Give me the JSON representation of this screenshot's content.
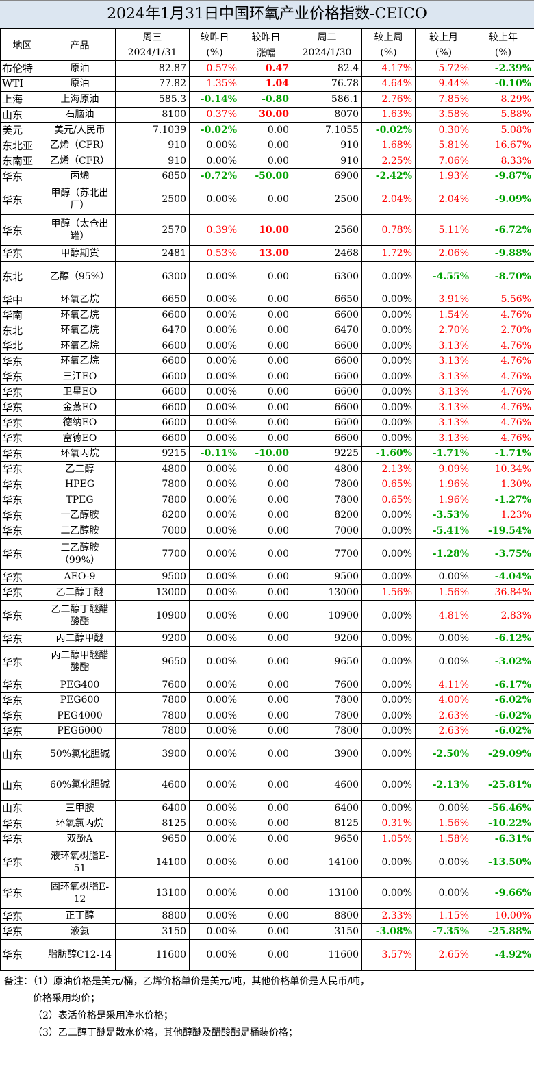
{
  "title": "2024年1月31日中国环氧产业价格指数-CEICO",
  "headers": {
    "region": "地区",
    "product": "产品",
    "wed": "周三",
    "wed_date": "2024/1/31",
    "dod_pct": "较昨日",
    "dod_pct_unit": "(%)",
    "dod_chg": "较昨日",
    "dod_chg_unit": "涨幅",
    "tue": "周二",
    "tue_date": "2024/1/30",
    "wow": "较上周",
    "wow_unit": "(%)",
    "mom": "较上月",
    "mom_unit": "(%)",
    "yoy": "较上年",
    "yoy_unit": "(%)"
  },
  "rows": [
    {
      "region": "布伦特",
      "product": "原油",
      "wed": "82.87",
      "dod": "0.57%",
      "chg": "0.47",
      "tue": "82.4",
      "wow": "4.17%",
      "mom": "5.72%",
      "yoy": "-2.39%"
    },
    {
      "region": "WTI",
      "product": "原油",
      "wed": "77.82",
      "dod": "1.35%",
      "chg": "1.04",
      "tue": "76.78",
      "wow": "4.64%",
      "mom": "9.44%",
      "yoy": "-0.10%"
    },
    {
      "region": "上海",
      "product": "上海原油",
      "wed": "585.3",
      "dod": "-0.14%",
      "chg": "-0.80",
      "tue": "586.1",
      "wow": "2.76%",
      "mom": "7.85%",
      "yoy": "8.29%"
    },
    {
      "region": "山东",
      "product": "石脑油",
      "wed": "8100",
      "dod": "0.37%",
      "chg": "30.00",
      "tue": "8070",
      "wow": "1.63%",
      "mom": "3.58%",
      "yoy": "5.88%"
    },
    {
      "region": "美元",
      "product": "美元/人民币",
      "wed": "7.1039",
      "dod": "-0.02%",
      "chg": "0.00",
      "tue": "7.1055",
      "wow": "-0.02%",
      "mom": "0.30%",
      "yoy": "5.08%"
    },
    {
      "region": "东北亚",
      "product": "乙烯（CFR）",
      "wed": "910",
      "dod": "0.00%",
      "chg": "0.00",
      "tue": "910",
      "wow": "1.68%",
      "mom": "5.81%",
      "yoy": "16.67%"
    },
    {
      "region": "东南亚",
      "product": "乙烯（CFR）",
      "wed": "910",
      "dod": "0.00%",
      "chg": "0.00",
      "tue": "910",
      "wow": "2.25%",
      "mom": "7.06%",
      "yoy": "8.33%"
    },
    {
      "region": "华东",
      "product": "丙烯",
      "wed": "6850",
      "dod": "-0.72%",
      "chg": "-50.00",
      "tue": "6900",
      "wow": "-2.42%",
      "mom": "1.93%",
      "yoy": "-9.87%"
    },
    {
      "region": "华东",
      "product": "甲醇（苏北出厂）",
      "wed": "2500",
      "dod": "0.00%",
      "chg": "0.00",
      "tue": "2500",
      "wow": "2.04%",
      "mom": "2.04%",
      "yoy": "-9.09%"
    },
    {
      "region": "华东",
      "product": "甲醇（太仓出罐）",
      "wed": "2570",
      "dod": "0.39%",
      "chg": "10.00",
      "tue": "2560",
      "wow": "0.78%",
      "mom": "5.11%",
      "yoy": "-6.72%"
    },
    {
      "region": "华东",
      "product": "甲醇期货",
      "wed": "2481",
      "dod": "0.53%",
      "chg": "13.00",
      "tue": "2468",
      "wow": "1.72%",
      "mom": "2.06%",
      "yoy": "-9.88%"
    },
    {
      "region": "东北",
      "product": "乙醇（95%）",
      "wed": "6300",
      "dod": "0.00%",
      "chg": "0.00",
      "tue": "6300",
      "wow": "0.00%",
      "mom": "-4.55%",
      "yoy": "-8.70%"
    },
    {
      "region": "华中",
      "product": "环氧乙烷",
      "wed": "6650",
      "dod": "0.00%",
      "chg": "0.00",
      "tue": "6650",
      "wow": "0.00%",
      "mom": "3.91%",
      "yoy": "5.56%"
    },
    {
      "region": "华南",
      "product": "环氧乙烷",
      "wed": "6600",
      "dod": "0.00%",
      "chg": "0.00",
      "tue": "6600",
      "wow": "0.00%",
      "mom": "1.54%",
      "yoy": "4.76%"
    },
    {
      "region": "东北",
      "product": "环氧乙烷",
      "wed": "6470",
      "dod": "0.00%",
      "chg": "0.00",
      "tue": "6470",
      "wow": "0.00%",
      "mom": "2.70%",
      "yoy": "2.70%"
    },
    {
      "region": "华北",
      "product": "环氧乙烷",
      "wed": "6600",
      "dod": "0.00%",
      "chg": "0.00",
      "tue": "6600",
      "wow": "0.00%",
      "mom": "3.13%",
      "yoy": "4.76%"
    },
    {
      "region": "华东",
      "product": "环氧乙烷",
      "wed": "6600",
      "dod": "0.00%",
      "chg": "0.00",
      "tue": "6600",
      "wow": "0.00%",
      "mom": "3.13%",
      "yoy": "4.76%"
    },
    {
      "region": "华东",
      "product": "三江EO",
      "wed": "6600",
      "dod": "0.00%",
      "chg": "0.00",
      "tue": "6600",
      "wow": "0.00%",
      "mom": "3.13%",
      "yoy": "4.76%"
    },
    {
      "region": "华东",
      "product": "卫星EO",
      "wed": "6600",
      "dod": "0.00%",
      "chg": "0.00",
      "tue": "6600",
      "wow": "0.00%",
      "mom": "3.13%",
      "yoy": "4.76%"
    },
    {
      "region": "华东",
      "product": "金燕EO",
      "wed": "6600",
      "dod": "0.00%",
      "chg": "0.00",
      "tue": "6600",
      "wow": "0.00%",
      "mom": "3.13%",
      "yoy": "4.76%"
    },
    {
      "region": "华东",
      "product": "德纳EO",
      "wed": "6600",
      "dod": "0.00%",
      "chg": "0.00",
      "tue": "6600",
      "wow": "0.00%",
      "mom": "3.13%",
      "yoy": "4.76%"
    },
    {
      "region": "华东",
      "product": "富德EO",
      "wed": "6600",
      "dod": "0.00%",
      "chg": "0.00",
      "tue": "6600",
      "wow": "0.00%",
      "mom": "3.13%",
      "yoy": "4.76%"
    },
    {
      "region": "华东",
      "product": "环氧丙烷",
      "wed": "9215",
      "dod": "-0.11%",
      "chg": "-10.00",
      "tue": "9225",
      "wow": "-1.60%",
      "mom": "-1.71%",
      "yoy": "-1.71%"
    },
    {
      "region": "华东",
      "product": "乙二醇",
      "wed": "4800",
      "dod": "0.00%",
      "chg": "0.00",
      "tue": "4800",
      "wow": "2.13%",
      "mom": "9.09%",
      "yoy": "10.34%"
    },
    {
      "region": "华东",
      "product": "HPEG",
      "wed": "7800",
      "dod": "0.00%",
      "chg": "0.00",
      "tue": "7800",
      "wow": "0.65%",
      "mom": "1.96%",
      "yoy": "1.30%"
    },
    {
      "region": "华东",
      "product": "TPEG",
      "wed": "7800",
      "dod": "0.00%",
      "chg": "0.00",
      "tue": "7800",
      "wow": "0.65%",
      "mom": "1.96%",
      "yoy": "-1.27%"
    },
    {
      "region": "华东",
      "product": "一乙醇胺",
      "wed": "8200",
      "dod": "0.00%",
      "chg": "0.00",
      "tue": "8200",
      "wow": "0.00%",
      "mom": "-3.53%",
      "yoy": "1.23%"
    },
    {
      "region": "华东",
      "product": "二乙醇胺",
      "wed": "7000",
      "dod": "0.00%",
      "chg": "0.00",
      "tue": "7000",
      "wow": "0.00%",
      "mom": "-5.41%",
      "yoy": "-19.54%"
    },
    {
      "region": "华东",
      "product": "三乙醇胺（99%）",
      "wed": "7700",
      "dod": "0.00%",
      "chg": "0.00",
      "tue": "7700",
      "wow": "0.00%",
      "mom": "-1.28%",
      "yoy": "-3.75%"
    },
    {
      "region": "华东",
      "product": "AEO-9",
      "wed": "9500",
      "dod": "0.00%",
      "chg": "0.00",
      "tue": "9500",
      "wow": "0.00%",
      "mom": "0.00%",
      "yoy": "-4.04%"
    },
    {
      "region": "华东",
      "product": "乙二醇丁醚",
      "wed": "13000",
      "dod": "0.00%",
      "chg": "0.00",
      "tue": "13000",
      "wow": "1.56%",
      "mom": "1.56%",
      "yoy": "36.84%"
    },
    {
      "region": "华东",
      "product": "乙二醇丁醚醋酸酯",
      "wed": "10900",
      "dod": "0.00%",
      "chg": "0.00",
      "tue": "10900",
      "wow": "0.00%",
      "mom": "4.81%",
      "yoy": "2.83%"
    },
    {
      "region": "华东",
      "product": "丙二醇甲醚",
      "wed": "9200",
      "dod": "0.00%",
      "chg": "0.00",
      "tue": "9200",
      "wow": "0.00%",
      "mom": "0.00%",
      "yoy": "-6.12%"
    },
    {
      "region": "华东",
      "product": "丙二醇甲醚醋酸酯",
      "wed": "9650",
      "dod": "0.00%",
      "chg": "0.00",
      "tue": "9650",
      "wow": "0.00%",
      "mom": "0.00%",
      "yoy": "-3.02%"
    },
    {
      "region": "华东",
      "product": "PEG400",
      "wed": "7600",
      "dod": "0.00%",
      "chg": "0.00",
      "tue": "7600",
      "wow": "0.00%",
      "mom": "4.11%",
      "yoy": "-6.17%"
    },
    {
      "region": "华东",
      "product": "PEG600",
      "wed": "7800",
      "dod": "0.00%",
      "chg": "0.00",
      "tue": "7800",
      "wow": "0.00%",
      "mom": "4.00%",
      "yoy": "-6.02%"
    },
    {
      "region": "华东",
      "product": "PEG4000",
      "wed": "7800",
      "dod": "0.00%",
      "chg": "0.00",
      "tue": "7800",
      "wow": "0.00%",
      "mom": "2.63%",
      "yoy": "-6.02%"
    },
    {
      "region": "华东",
      "product": "PEG6000",
      "wed": "7800",
      "dod": "0.00%",
      "chg": "0.00",
      "tue": "7800",
      "wow": "0.00%",
      "mom": "2.63%",
      "yoy": "-6.02%"
    },
    {
      "region": "山东",
      "product": "50%氯化胆碱",
      "wed": "3900",
      "dod": "0.00%",
      "chg": "0.00",
      "tue": "3900",
      "wow": "0.00%",
      "mom": "-2.50%",
      "yoy": "-29.09%"
    },
    {
      "region": "山东",
      "product": "60%氯化胆碱",
      "wed": "4600",
      "dod": "0.00%",
      "chg": "0.00",
      "tue": "4600",
      "wow": "0.00%",
      "mom": "-2.13%",
      "yoy": "-25.81%"
    },
    {
      "region": "山东",
      "product": "三甲胺",
      "wed": "6400",
      "dod": "0.00%",
      "chg": "0.00",
      "tue": "6400",
      "wow": "0.00%",
      "mom": "0.00%",
      "yoy": "-56.46%"
    },
    {
      "region": "华东",
      "product": "环氧氯丙烷",
      "wed": "8125",
      "dod": "0.00%",
      "chg": "0.00",
      "tue": "8125",
      "wow": "0.31%",
      "mom": "1.56%",
      "yoy": "-10.22%"
    },
    {
      "region": "华东",
      "product": "双酚A",
      "wed": "9650",
      "dod": "0.00%",
      "chg": "0.00",
      "tue": "9650",
      "wow": "1.05%",
      "mom": "1.58%",
      "yoy": "-6.31%"
    },
    {
      "region": "华东",
      "product": "液环氧树脂E-51",
      "wed": "14100",
      "dod": "0.00%",
      "chg": "0.00",
      "tue": "14100",
      "wow": "0.00%",
      "mom": "0.00%",
      "yoy": "-13.50%"
    },
    {
      "region": "华东",
      "product": "固环氧树脂E-12",
      "wed": "13100",
      "dod": "0.00%",
      "chg": "0.00",
      "tue": "13100",
      "wow": "0.00%",
      "mom": "0.00%",
      "yoy": "-9.66%"
    },
    {
      "region": "华东",
      "product": "正丁醇",
      "wed": "8800",
      "dod": "0.00%",
      "chg": "0.00",
      "tue": "8800",
      "wow": "2.33%",
      "mom": "1.15%",
      "yoy": "10.00%"
    },
    {
      "region": "华东",
      "product": "液氨",
      "wed": "3150",
      "dod": "0.00%",
      "chg": "0.00",
      "tue": "3150",
      "wow": "-3.08%",
      "mom": "-7.35%",
      "yoy": "-25.88%"
    },
    {
      "region": "华东",
      "product": "脂肪醇C12-14",
      "wed": "11600",
      "dod": "0.00%",
      "chg": "0.00",
      "tue": "11600",
      "wow": "3.57%",
      "mom": "2.65%",
      "yoy": "-4.92%"
    }
  ],
  "notes": [
    "备注：（1）原油价格是美元/桶，乙烯价格单价是美元/吨，其他价格单价是人民币/吨，",
    "价格采用均价；",
    "（2）表活价格是采用净水价格；",
    "（3）乙二醇丁醚是散水价格，其他醇醚及醋酸酯是桶装价格；"
  ]
}
